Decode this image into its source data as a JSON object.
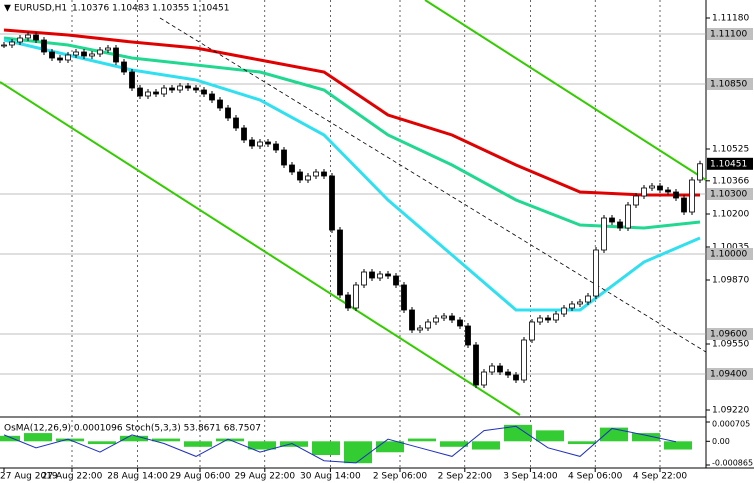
{
  "chart_data": {
    "type": "candlestick",
    "title": "EURUSD,H1",
    "ohlc_text": "1.10376 1.10483 1.10355 1.10451",
    "ylim": [
      1.09195,
      1.1127
    ],
    "yticks": [
      {
        "value": 1.1118,
        "label": "1.11180"
      },
      {
        "value": 1.10525,
        "label": "1.10525"
      },
      {
        "value": 1.10366,
        "label": "1.10366"
      },
      {
        "value": 1.102,
        "label": "1.10200"
      },
      {
        "value": 1.10035,
        "label": "1.10035"
      },
      {
        "value": 1.0987,
        "label": "1.09870"
      },
      {
        "value": 1.0955,
        "label": "1.09550"
      },
      {
        "value": 1.0922,
        "label": "1.09220"
      }
    ],
    "levels": [
      {
        "value": 1.111,
        "label": "1.11100"
      },
      {
        "value": 1.1085,
        "label": "1.10850"
      },
      {
        "value": 1.103,
        "label": "1.10300"
      },
      {
        "value": 1.1,
        "label": "1.10000"
      },
      {
        "value": 1.096,
        "label": "1.09600"
      },
      {
        "value": 1.094,
        "label": "1.09400"
      }
    ],
    "current_price": {
      "value": 1.10451,
      "label": "1.10451"
    },
    "xticks": [
      {
        "value": 0,
        "label": "27 Aug 2019"
      },
      {
        "value": 8.5,
        "label": "27 Aug 22:00"
      },
      {
        "value": 16.7,
        "label": "28 Aug 14:00"
      },
      {
        "value": 24.5,
        "label": "29 Aug 06:00"
      },
      {
        "value": 32.6,
        "label": "29 Aug 22:00"
      },
      {
        "value": 40.8,
        "label": "30 Aug 14:00"
      },
      {
        "value": 49.5,
        "label": "2 Sep 06:00"
      },
      {
        "value": 57.6,
        "label": "2 Sep 22:00"
      },
      {
        "value": 65.8,
        "label": "3 Sep 14:00"
      },
      {
        "value": 73.9,
        "label": "4 Sep 06:00"
      },
      {
        "value": 82,
        "label": "4 Sep 22:00"
      }
    ],
    "close": [
      1.11045,
      1.1106,
      1.1108,
      1.11095,
      1.1107,
      1.1101,
      1.1098,
      1.1097,
      1.10995,
      1.1101,
      1.1099,
      1.11,
      1.1102,
      1.1103,
      1.1096,
      1.1091,
      1.1083,
      1.1079,
      1.1081,
      1.108,
      1.1083,
      1.1082,
      1.1084,
      1.1083,
      1.1082,
      1.108,
      1.1077,
      1.1073,
      1.1068,
      1.1063,
      1.1057,
      1.1054,
      1.1056,
      1.1055,
      1.1052,
      1.10445,
      1.1041,
      1.1037,
      1.1039,
      1.1041,
      1.1039,
      1.1012,
      1.09795,
      1.0973,
      1.09845,
      1.0991,
      1.0988,
      1.099,
      1.0989,
      1.09845,
      1.0972,
      1.0962,
      1.0963,
      1.0966,
      1.0968,
      1.0969,
      1.0967,
      1.0964,
      1.09545,
      1.09345,
      1.0941,
      1.0944,
      1.0941,
      1.09395,
      1.0937,
      1.0957,
      1.0966,
      1.0968,
      1.0967,
      1.097,
      1.0973,
      1.0975,
      1.0976,
      1.0979,
      1.1002,
      1.1018,
      1.1016,
      1.1013,
      1.10245,
      1.1029,
      1.1033,
      1.1034,
      1.1032,
      1.1031,
      1.1028,
      1.1021,
      1.1037,
      1.10451
    ],
    "ma_x": [
      0,
      8,
      16,
      24,
      32,
      40,
      48,
      56,
      64,
      72,
      80,
      87
    ],
    "series": [
      {
        "color": "#e00000",
        "values": [
          1.1112,
          1.11095,
          1.1106,
          1.1103,
          1.1097,
          1.1091,
          1.10695,
          1.10595,
          1.10445,
          1.1031,
          1.10295,
          1.10295
        ]
      },
      {
        "color": "#20d890",
        "values": [
          1.1108,
          1.11045,
          1.1098,
          1.10945,
          1.1091,
          1.1082,
          1.10595,
          1.10445,
          1.1027,
          1.10145,
          1.1013,
          1.1016
        ]
      },
      {
        "color": "#30e0f0",
        "values": [
          1.1107,
          1.10995,
          1.1092,
          1.1087,
          1.1077,
          1.10595,
          1.1027,
          1.09995,
          1.0972,
          1.0972,
          1.0996,
          1.1008
        ]
      }
    ],
    "oscillator": {
      "title": "OsMA(12,26,9) 0.0001096  Stoch(5,3,3) 53.8671 68.7507",
      "ylim": [
        -0.000865,
        0.000705
      ],
      "yticks": [
        {
          "value": 0.000705,
          "label": "0.000705"
        },
        {
          "value": 0,
          "label": "0.00"
        },
        {
          "value": -0.000865,
          "label": "-0.000865"
        }
      ],
      "x": [
        0,
        4,
        8,
        12,
        16,
        20,
        24,
        28,
        32,
        36,
        40,
        44,
        48,
        52,
        56,
        60,
        64,
        68,
        72,
        76,
        80,
        84
      ],
      "osma": [
        0.0002,
        0.0003,
        0.0001,
        -0.0001,
        0.0002,
        0.0001,
        -0.0002,
        0.0001,
        -0.0003,
        -0.0002,
        -0.0005,
        -0.0008,
        -0.0004,
        0.0001,
        -0.0002,
        -0.0003,
        0.0006,
        0.0004,
        -0.0001,
        0.0005,
        0.0003,
        -0.0003
      ],
      "stoch_lim": [
        0,
        100
      ],
      "stoch": [
        70,
        40,
        60,
        30,
        70,
        50,
        20,
        60,
        30,
        50,
        10,
        5,
        60,
        40,
        20,
        80,
        90,
        40,
        20,
        85,
        70,
        54
      ]
    }
  }
}
